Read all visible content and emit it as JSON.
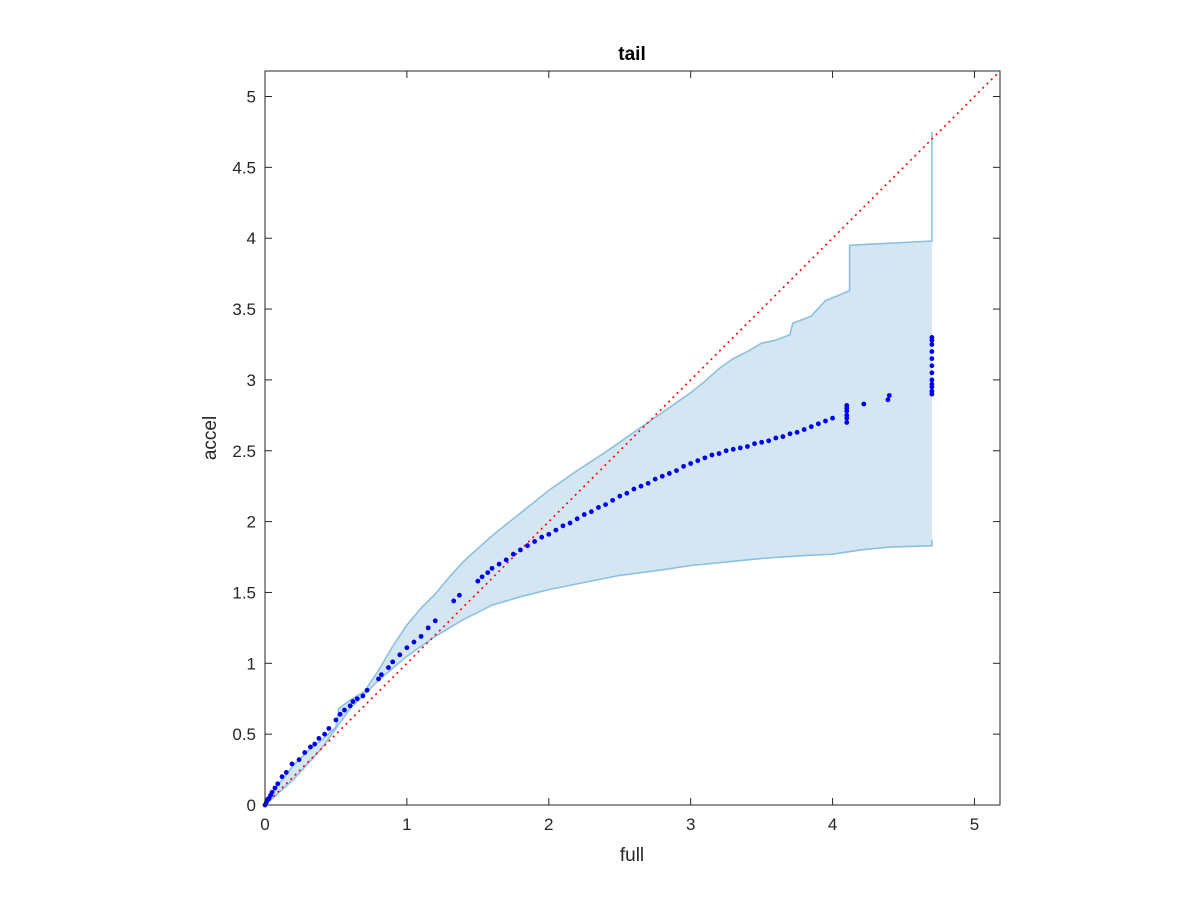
{
  "chart_data": {
    "type": "scatter",
    "title": "tail",
    "xlabel": "full",
    "ylabel": "accel",
    "xlim": [
      0,
      5.18
    ],
    "ylim": [
      0,
      5.18
    ],
    "xticks": [
      0,
      1,
      2,
      3,
      4,
      5
    ],
    "yticks": [
      0,
      0.5,
      1,
      1.5,
      2,
      2.5,
      3,
      3.5,
      4,
      4.5,
      5
    ],
    "xtick_labels": [
      "0",
      "1",
      "2",
      "3",
      "4",
      "5"
    ],
    "ytick_labels": [
      "0",
      "0.5",
      "1",
      "1.5",
      "2",
      "2.5",
      "3",
      "3.5",
      "4",
      "4.5",
      "5"
    ],
    "grid": false,
    "colors": {
      "points": "#0000ee",
      "band_fill": "#d5e6f3",
      "band_edge": "#8cc0e0",
      "reference": "#ff0000",
      "axis": "#262626"
    },
    "reference_line": {
      "style": "dotted",
      "x": [
        0,
        5.18
      ],
      "y": [
        0,
        5.18
      ]
    },
    "band": {
      "upper": [
        [
          0,
          0
        ],
        [
          0.05,
          0.08
        ],
        [
          0.1,
          0.15
        ],
        [
          0.2,
          0.28
        ],
        [
          0.3,
          0.38
        ],
        [
          0.4,
          0.46
        ],
        [
          0.5,
          0.55
        ],
        [
          0.52,
          0.68
        ],
        [
          0.6,
          0.74
        ],
        [
          0.7,
          0.8
        ],
        [
          0.8,
          0.95
        ],
        [
          0.9,
          1.12
        ],
        [
          1.0,
          1.27
        ],
        [
          1.1,
          1.39
        ],
        [
          1.2,
          1.49
        ],
        [
          1.3,
          1.61
        ],
        [
          1.4,
          1.72
        ],
        [
          1.5,
          1.81
        ],
        [
          1.6,
          1.9
        ],
        [
          1.7,
          1.98
        ],
        [
          1.8,
          2.06
        ],
        [
          1.9,
          2.14
        ],
        [
          2.0,
          2.22
        ],
        [
          2.2,
          2.36
        ],
        [
          2.4,
          2.49
        ],
        [
          2.6,
          2.63
        ],
        [
          2.8,
          2.77
        ],
        [
          3.0,
          2.91
        ],
        [
          3.1,
          2.99
        ],
        [
          3.2,
          3.08
        ],
        [
          3.3,
          3.15
        ],
        [
          3.4,
          3.2
        ],
        [
          3.5,
          3.26
        ],
        [
          3.6,
          3.28
        ],
        [
          3.7,
          3.32
        ],
        [
          3.72,
          3.4
        ],
        [
          3.85,
          3.45
        ],
        [
          3.95,
          3.56
        ],
        [
          4.05,
          3.6
        ],
        [
          4.12,
          3.63
        ],
        [
          4.12,
          3.95
        ],
        [
          4.3,
          3.96
        ],
        [
          4.5,
          3.97
        ],
        [
          4.7,
          3.98
        ],
        [
          4.7,
          4.75
        ]
      ],
      "lower": [
        [
          0,
          0
        ],
        [
          0.2,
          0.18
        ],
        [
          0.4,
          0.4
        ],
        [
          0.5,
          0.54
        ],
        [
          0.6,
          0.68
        ],
        [
          0.8,
          0.88
        ],
        [
          1.0,
          1.05
        ],
        [
          1.2,
          1.19
        ],
        [
          1.4,
          1.31
        ],
        [
          1.6,
          1.41
        ],
        [
          1.8,
          1.47
        ],
        [
          2.0,
          1.52
        ],
        [
          2.2,
          1.56
        ],
        [
          2.5,
          1.62
        ],
        [
          2.8,
          1.66
        ],
        [
          3.0,
          1.69
        ],
        [
          3.3,
          1.72
        ],
        [
          3.5,
          1.74
        ],
        [
          3.8,
          1.76
        ],
        [
          4.0,
          1.77
        ],
        [
          4.2,
          1.8
        ],
        [
          4.4,
          1.82
        ],
        [
          4.7,
          1.83
        ],
        [
          4.7,
          1.87
        ]
      ]
    },
    "series": [
      {
        "x": [
          0,
          0.01,
          0.02,
          0.03,
          0.04,
          0.05,
          0.07,
          0.09,
          0.12,
          0.15,
          0.19,
          0.24,
          0.28,
          0.32,
          0.35,
          0.38,
          0.42,
          0.45,
          0.5,
          0.53,
          0.56,
          0.6,
          0.62,
          0.65,
          0.69,
          0.72,
          0.8,
          0.82,
          0.87,
          0.9,
          0.95,
          1.0,
          1.05,
          1.1,
          1.15,
          1.2,
          1.33,
          1.37,
          1.5,
          1.53,
          1.57,
          1.6,
          1.65,
          1.7,
          1.75,
          1.8,
          1.85,
          1.9,
          1.95,
          2.0,
          2.05,
          2.1,
          2.15,
          2.2,
          2.25,
          2.3,
          2.35,
          2.4,
          2.45,
          2.5,
          2.55,
          2.6,
          2.65,
          2.7,
          2.75,
          2.8,
          2.85,
          2.9,
          2.95,
          3.0,
          3.05,
          3.1,
          3.15,
          3.2,
          3.25,
          3.3,
          3.35,
          3.4,
          3.45,
          3.5,
          3.55,
          3.6,
          3.65,
          3.7,
          3.75,
          3.8,
          3.85,
          3.9,
          3.95,
          4.0,
          4.1,
          4.1,
          4.1,
          4.1,
          4.1,
          4.1,
          4.22,
          4.39,
          4.4,
          4.7,
          4.7,
          4.7,
          4.7,
          4.7,
          4.7,
          4.7,
          4.7,
          4.7,
          4.7,
          4.7,
          4.7
        ],
        "y": [
          0,
          0.02,
          0.04,
          0.05,
          0.07,
          0.09,
          0.12,
          0.15,
          0.2,
          0.23,
          0.29,
          0.32,
          0.37,
          0.41,
          0.43,
          0.47,
          0.5,
          0.54,
          0.6,
          0.64,
          0.67,
          0.7,
          0.73,
          0.75,
          0.77,
          0.81,
          0.89,
          0.92,
          0.97,
          1.01,
          1.06,
          1.11,
          1.15,
          1.19,
          1.25,
          1.3,
          1.44,
          1.48,
          1.58,
          1.61,
          1.64,
          1.67,
          1.7,
          1.73,
          1.77,
          1.8,
          1.83,
          1.86,
          1.89,
          1.91,
          1.94,
          1.97,
          1.99,
          2.02,
          2.05,
          2.07,
          2.1,
          2.12,
          2.15,
          2.18,
          2.2,
          2.23,
          2.25,
          2.27,
          2.3,
          2.32,
          2.34,
          2.36,
          2.39,
          2.41,
          2.43,
          2.45,
          2.47,
          2.48,
          2.5,
          2.51,
          2.52,
          2.53,
          2.55,
          2.56,
          2.57,
          2.59,
          2.6,
          2.62,
          2.63,
          2.65,
          2.67,
          2.69,
          2.71,
          2.73,
          2.7,
          2.73,
          2.75,
          2.78,
          2.8,
          2.82,
          2.83,
          2.86,
          2.89,
          2.9,
          2.95,
          3.0,
          3.05,
          3.1,
          3.15,
          3.2,
          3.25,
          3.28,
          3.3,
          2.92,
          2.97
        ]
      }
    ]
  }
}
